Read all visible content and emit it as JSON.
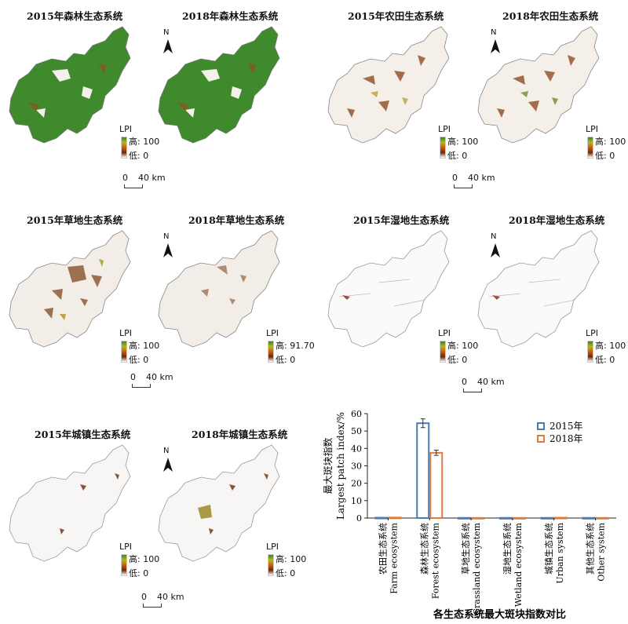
{
  "maps": {
    "forest": {
      "title_2015": "2015年森林生态系统",
      "title_2018": "2018年森林生态系统",
      "legend_title": "LPI",
      "high": "高: 100",
      "low": "低: 0",
      "fill": "#3a8a2a"
    },
    "farm": {
      "title_2015": "2015年农田生态系统",
      "title_2018": "2018年农田生态系统",
      "legend_title": "LPI",
      "high": "高: 100",
      "low": "低: 0",
      "fill": "#f4efe8"
    },
    "grass": {
      "title_2015": "2015年草地生态系统",
      "title_2018": "2018年草地生态系统",
      "legend_title": "LPI",
      "high": "高: 100",
      "low": "低: 0",
      "high_2018": "高: 91.70",
      "fill": "#f2ede6"
    },
    "wetland": {
      "title_2015": "2015年湿地生态系统",
      "title_2018": "2018年湿地生态系统",
      "legend_title": "LPI",
      "high": "高: 100",
      "low": "低: 0",
      "fill": "#fbfafa"
    },
    "urban": {
      "title_2015": "2015年城镇生态系统",
      "title_2018": "2018年城镇生态系统",
      "legend_title": "LPI",
      "high": "高: 100",
      "low": "低: 0",
      "fill": "#f8f6f5"
    },
    "north_label": "N",
    "scale_zero": "0",
    "scale_dist": "40 km"
  },
  "chart_data": {
    "type": "bar",
    "title": "各生态系统最大斑块指数对比",
    "ylabel_cn": "最大斑块指数",
    "ylabel_en": "Largest patch index/%",
    "ylim": [
      0,
      60
    ],
    "yticks": [
      "0",
      "10",
      "20",
      "30",
      "40",
      "50",
      "60"
    ],
    "categories": [
      {
        "cn": "农田生态系统",
        "en": "Farm ecosystem"
      },
      {
        "cn": "森林生态系统",
        "en": "Forest ecosystem"
      },
      {
        "cn": "草地生态系统",
        "en": "Grassland ecosystem"
      },
      {
        "cn": "湿地生态系统",
        "en": "Wetland ecosystem"
      },
      {
        "cn": "城镇生态系统",
        "en": "Urban system"
      },
      {
        "cn": "其他生态系统",
        "en": "Other system"
      }
    ],
    "series": [
      {
        "name": "2015年",
        "color": "#4a7ab8",
        "values": [
          0.2,
          54.5,
          0.1,
          0.1,
          0.1,
          0.1
        ],
        "err": [
          0,
          2.5,
          0,
          0,
          0,
          0
        ]
      },
      {
        "name": "2018年",
        "color": "#e07b39",
        "values": [
          0.3,
          37.5,
          0.1,
          0.1,
          0.2,
          0.1
        ],
        "err": [
          0,
          1.5,
          0,
          0,
          0,
          0
        ]
      }
    ],
    "legend": "top-right"
  }
}
